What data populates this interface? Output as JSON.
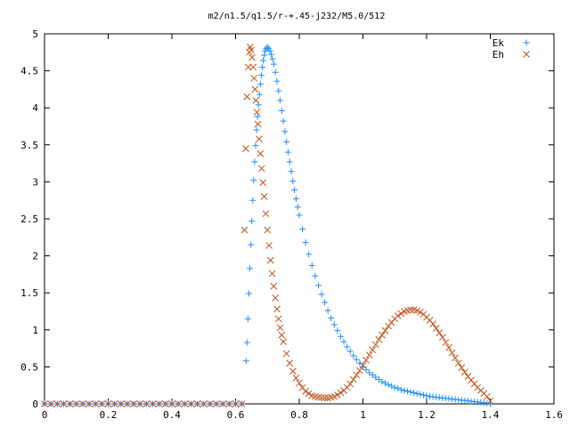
{
  "chart_data": {
    "type": "scatter",
    "title": "m2/n1.5/q1.5/r-+.45-j232/M5.0/512",
    "xlim": [
      0,
      1.6
    ],
    "ylim": [
      0,
      5
    ],
    "x_ticks": [
      "0",
      "0.2",
      "0.4",
      "0.6",
      "0.8",
      "1",
      "1.2",
      "1.4",
      "1.6"
    ],
    "y_ticks": [
      "0",
      "0.5",
      "1",
      "1.5",
      "2",
      "2.5",
      "3",
      "3.5",
      "4",
      "4.5",
      "5"
    ],
    "x_tick_values": [
      0,
      0.2,
      0.4,
      0.6,
      0.8,
      1,
      1.2,
      1.4,
      1.6
    ],
    "y_tick_values": [
      0,
      0.5,
      1,
      1.5,
      2,
      2.5,
      3,
      3.5,
      4,
      4.5,
      5
    ],
    "legend_position": "top-right",
    "grid": false,
    "series": [
      {
        "name": "Ek",
        "marker": "plus",
        "color": "#1e90ff",
        "points": [
          [
            0.0,
            0
          ],
          [
            0.02,
            0
          ],
          [
            0.04,
            0
          ],
          [
            0.06,
            0
          ],
          [
            0.08,
            0
          ],
          [
            0.1,
            0
          ],
          [
            0.12,
            0
          ],
          [
            0.14,
            0
          ],
          [
            0.16,
            0
          ],
          [
            0.18,
            0
          ],
          [
            0.2,
            0
          ],
          [
            0.22,
            0
          ],
          [
            0.24,
            0
          ],
          [
            0.26,
            0
          ],
          [
            0.28,
            0
          ],
          [
            0.3,
            0
          ],
          [
            0.32,
            0
          ],
          [
            0.34,
            0
          ],
          [
            0.36,
            0
          ],
          [
            0.38,
            0
          ],
          [
            0.4,
            0
          ],
          [
            0.42,
            0
          ],
          [
            0.44,
            0
          ],
          [
            0.46,
            0
          ],
          [
            0.48,
            0
          ],
          [
            0.5,
            0
          ],
          [
            0.52,
            0
          ],
          [
            0.54,
            0
          ],
          [
            0.56,
            0
          ],
          [
            0.58,
            0
          ],
          [
            0.6,
            0
          ],
          [
            0.62,
            0
          ],
          [
            0.633,
            0.58
          ],
          [
            0.636,
            0.83
          ],
          [
            0.639,
            1.15
          ],
          [
            0.642,
            1.49
          ],
          [
            0.645,
            1.83
          ],
          [
            0.648,
            2.15
          ],
          [
            0.651,
            2.47
          ],
          [
            0.654,
            2.75
          ],
          [
            0.657,
            3.02
          ],
          [
            0.66,
            3.27
          ],
          [
            0.663,
            3.49
          ],
          [
            0.666,
            3.7
          ],
          [
            0.669,
            3.88
          ],
          [
            0.672,
            4.04
          ],
          [
            0.675,
            4.18
          ],
          [
            0.678,
            4.32
          ],
          [
            0.681,
            4.44
          ],
          [
            0.684,
            4.55
          ],
          [
            0.687,
            4.64
          ],
          [
            0.69,
            4.71
          ],
          [
            0.693,
            4.77
          ],
          [
            0.696,
            4.8
          ],
          [
            0.7,
            4.82
          ],
          [
            0.704,
            4.8
          ],
          [
            0.708,
            4.77
          ],
          [
            0.712,
            4.72
          ],
          [
            0.716,
            4.66
          ],
          [
            0.72,
            4.59
          ],
          [
            0.725,
            4.48
          ],
          [
            0.73,
            4.36
          ],
          [
            0.735,
            4.23
          ],
          [
            0.74,
            4.1
          ],
          [
            0.745,
            3.96
          ],
          [
            0.75,
            3.82
          ],
          [
            0.755,
            3.68
          ],
          [
            0.76,
            3.54
          ],
          [
            0.765,
            3.4
          ],
          [
            0.77,
            3.27
          ],
          [
            0.775,
            3.14
          ],
          [
            0.78,
            3.01
          ],
          [
            0.785,
            2.89
          ],
          [
            0.79,
            2.77
          ],
          [
            0.795,
            2.66
          ],
          [
            0.8,
            2.55
          ],
          [
            0.81,
            2.36
          ],
          [
            0.82,
            2.18
          ],
          [
            0.83,
            2.02
          ],
          [
            0.84,
            1.87
          ],
          [
            0.85,
            1.73
          ],
          [
            0.86,
            1.6
          ],
          [
            0.87,
            1.48
          ],
          [
            0.88,
            1.37
          ],
          [
            0.89,
            1.26
          ],
          [
            0.9,
            1.16
          ],
          [
            0.91,
            1.07
          ],
          [
            0.92,
            0.99
          ],
          [
            0.93,
            0.91
          ],
          [
            0.94,
            0.84
          ],
          [
            0.95,
            0.77
          ],
          [
            0.96,
            0.71
          ],
          [
            0.97,
            0.65
          ],
          [
            0.98,
            0.6
          ],
          [
            0.99,
            0.55
          ],
          [
            1.0,
            0.5
          ],
          [
            1.01,
            0.46
          ],
          [
            1.02,
            0.42
          ],
          [
            1.03,
            0.39
          ],
          [
            1.04,
            0.36
          ],
          [
            1.05,
            0.33
          ],
          [
            1.06,
            0.3
          ],
          [
            1.07,
            0.28
          ],
          [
            1.08,
            0.26
          ],
          [
            1.09,
            0.24
          ],
          [
            1.1,
            0.22
          ],
          [
            1.11,
            0.21
          ],
          [
            1.12,
            0.19
          ],
          [
            1.13,
            0.18
          ],
          [
            1.14,
            0.17
          ],
          [
            1.15,
            0.16
          ],
          [
            1.16,
            0.15
          ],
          [
            1.17,
            0.14
          ],
          [
            1.18,
            0.13
          ],
          [
            1.19,
            0.12
          ],
          [
            1.2,
            0.11
          ],
          [
            1.21,
            0.1
          ],
          [
            1.22,
            0.095
          ],
          [
            1.23,
            0.09
          ],
          [
            1.24,
            0.085
          ],
          [
            1.25,
            0.08
          ],
          [
            1.26,
            0.075
          ],
          [
            1.27,
            0.07
          ],
          [
            1.28,
            0.065
          ],
          [
            1.29,
            0.06
          ],
          [
            1.3,
            0.055
          ],
          [
            1.31,
            0.05
          ],
          [
            1.32,
            0.045
          ],
          [
            1.33,
            0.04
          ],
          [
            1.34,
            0.035
          ],
          [
            1.35,
            0.03
          ],
          [
            1.36,
            0.025
          ],
          [
            1.37,
            0.02
          ],
          [
            1.38,
            0.015
          ],
          [
            1.39,
            0.01
          ],
          [
            1.4,
            0.005
          ]
        ]
      },
      {
        "name": "Eh",
        "marker": "cross",
        "color": "#c0521a",
        "points": [
          [
            0.0,
            0
          ],
          [
            0.02,
            0
          ],
          [
            0.04,
            0
          ],
          [
            0.06,
            0
          ],
          [
            0.08,
            0
          ],
          [
            0.1,
            0
          ],
          [
            0.12,
            0
          ],
          [
            0.14,
            0
          ],
          [
            0.16,
            0
          ],
          [
            0.18,
            0
          ],
          [
            0.2,
            0
          ],
          [
            0.22,
            0
          ],
          [
            0.24,
            0
          ],
          [
            0.26,
            0
          ],
          [
            0.28,
            0
          ],
          [
            0.3,
            0
          ],
          [
            0.32,
            0
          ],
          [
            0.34,
            0
          ],
          [
            0.36,
            0
          ],
          [
            0.38,
            0
          ],
          [
            0.4,
            0
          ],
          [
            0.42,
            0
          ],
          [
            0.44,
            0
          ],
          [
            0.46,
            0
          ],
          [
            0.48,
            0
          ],
          [
            0.5,
            0
          ],
          [
            0.52,
            0
          ],
          [
            0.54,
            0
          ],
          [
            0.56,
            0
          ],
          [
            0.58,
            0
          ],
          [
            0.6,
            0
          ],
          [
            0.62,
            0
          ],
          [
            0.628,
            2.35
          ],
          [
            0.632,
            3.45
          ],
          [
            0.636,
            4.15
          ],
          [
            0.64,
            4.55
          ],
          [
            0.643,
            4.75
          ],
          [
            0.646,
            4.82
          ],
          [
            0.649,
            4.78
          ],
          [
            0.652,
            4.68
          ],
          [
            0.655,
            4.55
          ],
          [
            0.658,
            4.4
          ],
          [
            0.661,
            4.25
          ],
          [
            0.664,
            4.1
          ],
          [
            0.667,
            3.94
          ],
          [
            0.67,
            3.78
          ],
          [
            0.674,
            3.58
          ],
          [
            0.678,
            3.38
          ],
          [
            0.682,
            3.18
          ],
          [
            0.686,
            2.99
          ],
          [
            0.69,
            2.8
          ],
          [
            0.695,
            2.57
          ],
          [
            0.7,
            2.35
          ],
          [
            0.705,
            2.14
          ],
          [
            0.71,
            1.94
          ],
          [
            0.715,
            1.76
          ],
          [
            0.72,
            1.59
          ],
          [
            0.725,
            1.43
          ],
          [
            0.73,
            1.28
          ],
          [
            0.735,
            1.15
          ],
          [
            0.74,
            1.03
          ],
          [
            0.745,
            0.93
          ],
          [
            0.75,
            0.84
          ],
          [
            0.76,
            0.68
          ],
          [
            0.77,
            0.55
          ],
          [
            0.78,
            0.44
          ],
          [
            0.79,
            0.35
          ],
          [
            0.8,
            0.28
          ],
          [
            0.81,
            0.22
          ],
          [
            0.82,
            0.17
          ],
          [
            0.83,
            0.14
          ],
          [
            0.84,
            0.11
          ],
          [
            0.85,
            0.1
          ],
          [
            0.86,
            0.09
          ],
          [
            0.87,
            0.085
          ],
          [
            0.88,
            0.08
          ],
          [
            0.89,
            0.08
          ],
          [
            0.9,
            0.09
          ],
          [
            0.91,
            0.1
          ],
          [
            0.92,
            0.12
          ],
          [
            0.93,
            0.15
          ],
          [
            0.94,
            0.18
          ],
          [
            0.95,
            0.22
          ],
          [
            0.96,
            0.27
          ],
          [
            0.97,
            0.33
          ],
          [
            0.98,
            0.39
          ],
          [
            0.99,
            0.45
          ],
          [
            1.0,
            0.52
          ],
          [
            1.01,
            0.59
          ],
          [
            1.02,
            0.66
          ],
          [
            1.03,
            0.73
          ],
          [
            1.04,
            0.8
          ],
          [
            1.05,
            0.87
          ],
          [
            1.06,
            0.93
          ],
          [
            1.07,
            0.99
          ],
          [
            1.08,
            1.05
          ],
          [
            1.09,
            1.1
          ],
          [
            1.1,
            1.15
          ],
          [
            1.11,
            1.19
          ],
          [
            1.12,
            1.22
          ],
          [
            1.13,
            1.25
          ],
          [
            1.14,
            1.26
          ],
          [
            1.15,
            1.27
          ],
          [
            1.16,
            1.27
          ],
          [
            1.17,
            1.26
          ],
          [
            1.18,
            1.24
          ],
          [
            1.19,
            1.21
          ],
          [
            1.2,
            1.17
          ],
          [
            1.21,
            1.13
          ],
          [
            1.22,
            1.08
          ],
          [
            1.23,
            1.02
          ],
          [
            1.24,
            0.96
          ],
          [
            1.25,
            0.9
          ],
          [
            1.26,
            0.83
          ],
          [
            1.27,
            0.76
          ],
          [
            1.28,
            0.69
          ],
          [
            1.29,
            0.62
          ],
          [
            1.3,
            0.55
          ],
          [
            1.31,
            0.49
          ],
          [
            1.32,
            0.43
          ],
          [
            1.33,
            0.37
          ],
          [
            1.34,
            0.32
          ],
          [
            1.35,
            0.27
          ],
          [
            1.36,
            0.22
          ],
          [
            1.37,
            0.18
          ],
          [
            1.38,
            0.14
          ],
          [
            1.39,
            0.1
          ],
          [
            1.4,
            0.04
          ]
        ]
      }
    ]
  }
}
